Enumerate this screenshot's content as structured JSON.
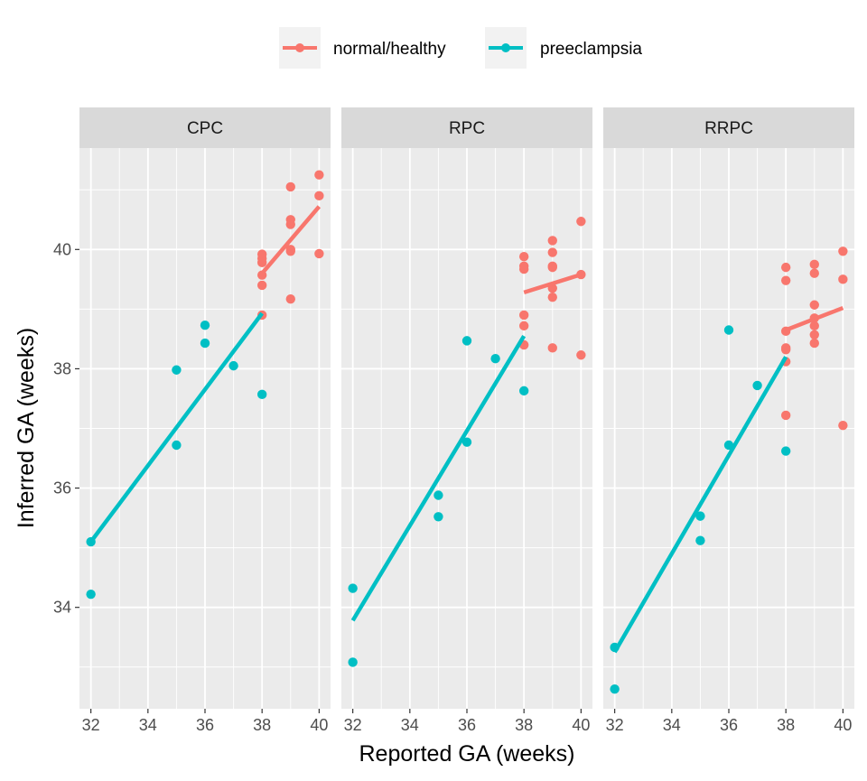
{
  "colors": {
    "normal": "#F8766D",
    "preeclampsia": "#00BFC4",
    "panel_bg": "#EBEBEB",
    "strip_bg": "#D9D9D9",
    "grid": "#FFFFFF",
    "tick": "#333333"
  },
  "chart_data": {
    "type": "scatter",
    "facets": [
      "CPC",
      "RPC",
      "RRPC"
    ],
    "xlabel": "Reported GA (weeks)",
    "ylabel": "Inferred GA (weeks)",
    "xlim": [
      31.6,
      40.4
    ],
    "ylim": [
      32.3,
      41.7
    ],
    "x_major_ticks": [
      32,
      34,
      36,
      38,
      40
    ],
    "y_major_ticks": [
      34,
      36,
      38,
      40
    ],
    "x_minor_ticks": [
      33,
      35,
      37,
      39
    ],
    "y_minor_ticks": [
      33,
      35,
      37,
      39,
      41
    ],
    "grid": true,
    "legend_position": "top",
    "legend": [
      {
        "key": "normal",
        "label": "normal/healthy"
      },
      {
        "key": "preeclampsia",
        "label": "preeclampsia"
      }
    ],
    "panels": [
      {
        "name": "CPC",
        "normal": {
          "points": [
            [
              38,
              39.92
            ],
            [
              38,
              39.85
            ],
            [
              38,
              39.78
            ],
            [
              38,
              39.57
            ],
            [
              38,
              39.4
            ],
            [
              38,
              38.9
            ],
            [
              39,
              41.05
            ],
            [
              39,
              40.5
            ],
            [
              39,
              40.42
            ],
            [
              39,
              40.0
            ],
            [
              39,
              39.97
            ],
            [
              39,
              39.17
            ],
            [
              40,
              41.25
            ],
            [
              40,
              40.9
            ],
            [
              40,
              39.93
            ]
          ],
          "fit": [
            [
              38,
              39.6
            ],
            [
              40,
              40.72
            ]
          ]
        },
        "preeclampsia": {
          "points": [
            [
              32,
              35.1
            ],
            [
              32,
              34.22
            ],
            [
              35,
              37.98
            ],
            [
              35,
              36.72
            ],
            [
              36,
              38.73
            ],
            [
              36,
              38.43
            ],
            [
              37,
              38.05
            ],
            [
              38,
              37.57
            ]
          ],
          "fit": [
            [
              32,
              35.1
            ],
            [
              38,
              38.93
            ]
          ]
        }
      },
      {
        "name": "RPC",
        "normal": {
          "points": [
            [
              38,
              39.88
            ],
            [
              38,
              39.72
            ],
            [
              38,
              39.67
            ],
            [
              38,
              38.9
            ],
            [
              38,
              38.72
            ],
            [
              38,
              38.4
            ],
            [
              39,
              40.15
            ],
            [
              39,
              39.95
            ],
            [
              39,
              39.72
            ],
            [
              39,
              39.7
            ],
            [
              39,
              39.35
            ],
            [
              39,
              39.2
            ],
            [
              39,
              38.35
            ],
            [
              40,
              40.47
            ],
            [
              40,
              39.58
            ],
            [
              40,
              38.23
            ]
          ],
          "fit": [
            [
              38,
              39.28
            ],
            [
              40,
              39.58
            ]
          ]
        },
        "preeclampsia": {
          "points": [
            [
              32,
              34.32
            ],
            [
              32,
              33.08
            ],
            [
              35,
              35.88
            ],
            [
              35,
              35.52
            ],
            [
              36,
              38.47
            ],
            [
              36,
              36.77
            ],
            [
              37,
              38.17
            ],
            [
              38,
              37.63
            ]
          ],
          "fit": [
            [
              32,
              33.78
            ],
            [
              38,
              38.55
            ]
          ]
        }
      },
      {
        "name": "RRPC",
        "normal": {
          "points": [
            [
              38,
              39.7
            ],
            [
              38,
              39.48
            ],
            [
              38,
              38.63
            ],
            [
              38,
              38.35
            ],
            [
              38,
              38.32
            ],
            [
              38,
              38.12
            ],
            [
              38,
              37.22
            ],
            [
              39,
              39.75
            ],
            [
              39,
              39.6
            ],
            [
              39,
              39.07
            ],
            [
              39,
              38.85
            ],
            [
              39,
              38.72
            ],
            [
              39,
              38.57
            ],
            [
              39,
              38.43
            ],
            [
              40,
              39.97
            ],
            [
              40,
              39.5
            ],
            [
              40,
              37.05
            ]
          ],
          "fit": [
            [
              38,
              38.65
            ],
            [
              40,
              39.02
            ]
          ]
        },
        "preeclampsia": {
          "points": [
            [
              32,
              33.33
            ],
            [
              32,
              32.63
            ],
            [
              35,
              35.53
            ],
            [
              35,
              35.12
            ],
            [
              36,
              38.65
            ],
            [
              36,
              36.72
            ],
            [
              37,
              37.72
            ],
            [
              38,
              36.62
            ]
          ],
          "fit": [
            [
              32,
              33.25
            ],
            [
              38,
              38.2
            ]
          ]
        }
      }
    ]
  }
}
